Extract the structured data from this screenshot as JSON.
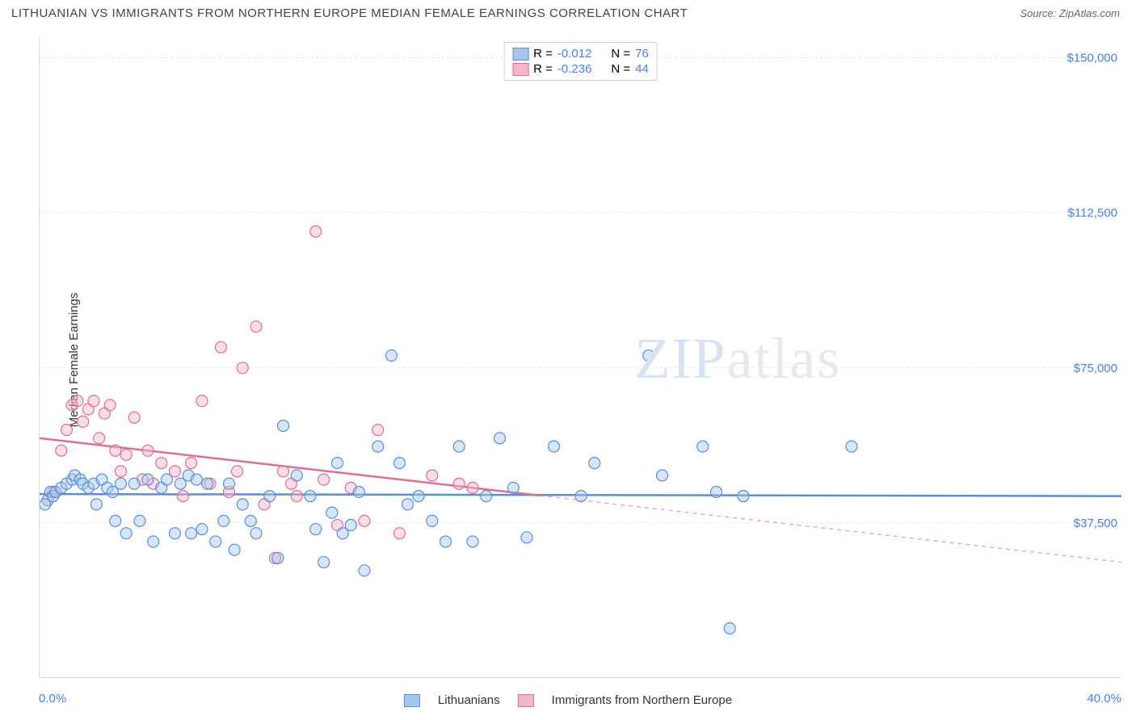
{
  "title": "LITHUANIAN VS IMMIGRANTS FROM NORTHERN EUROPE MEDIAN FEMALE EARNINGS CORRELATION CHART",
  "source": "Source: ZipAtlas.com",
  "ylabel": "Median Female Earnings",
  "watermark_a": "ZIP",
  "watermark_b": "atlas",
  "chart": {
    "type": "scatter-with-regression",
    "background_color": "#ffffff",
    "grid_color": "#e5e5e5",
    "grid_dash": "3,3",
    "axis_color": "#d9d9d9",
    "xlim": [
      0,
      40
    ],
    "ylim": [
      0,
      155000
    ],
    "x_axis": {
      "min_label": "0.0%",
      "max_label": "40.0%",
      "label_color": "#4a7fe0",
      "label_fontsize": 15,
      "tick_positions_pct": [
        0,
        5,
        10,
        15,
        20,
        25,
        30,
        40
      ]
    },
    "y_axis": {
      "ticks": [
        37500,
        75000,
        112500,
        150000
      ],
      "tick_labels": [
        "$37,500",
        "$75,000",
        "$112,500",
        "$150,000"
      ],
      "label_color": "#4a7fe0",
      "label_fontsize": 15
    },
    "marker_radius": 7,
    "marker_stroke_width": 1.2,
    "marker_fill_opacity": 0.45,
    "series": [
      {
        "id": "lithuanians",
        "name": "Lithuanians",
        "color_stroke": "#5a8fd6",
        "color_fill": "#a8c5eb",
        "R": "-0.012",
        "N": "76",
        "regression": {
          "x1": 0,
          "y1": 44500,
          "x2": 40,
          "y2": 44000,
          "solid_until_x": 40
        },
        "points": [
          [
            0.3,
            43000
          ],
          [
            0.4,
            45000
          ],
          [
            0.5,
            44000
          ],
          [
            0.6,
            45000
          ],
          [
            0.8,
            46000
          ],
          [
            1.0,
            47000
          ],
          [
            1.2,
            48000
          ],
          [
            1.3,
            49000
          ],
          [
            1.5,
            48000
          ],
          [
            1.6,
            47000
          ],
          [
            1.8,
            46000
          ],
          [
            2.0,
            47000
          ],
          [
            2.1,
            42000
          ],
          [
            2.3,
            48000
          ],
          [
            2.5,
            46000
          ],
          [
            2.7,
            45000
          ],
          [
            2.8,
            38000
          ],
          [
            3.0,
            47000
          ],
          [
            3.2,
            35000
          ],
          [
            3.5,
            47000
          ],
          [
            3.7,
            38000
          ],
          [
            4.0,
            48000
          ],
          [
            4.2,
            33000
          ],
          [
            4.5,
            46000
          ],
          [
            4.7,
            48000
          ],
          [
            5.0,
            35000
          ],
          [
            5.2,
            47000
          ],
          [
            5.5,
            49000
          ],
          [
            5.6,
            35000
          ],
          [
            5.8,
            48000
          ],
          [
            6.0,
            36000
          ],
          [
            6.2,
            47000
          ],
          [
            6.5,
            33000
          ],
          [
            6.8,
            38000
          ],
          [
            7.0,
            47000
          ],
          [
            7.2,
            31000
          ],
          [
            7.5,
            42000
          ],
          [
            7.8,
            38000
          ],
          [
            8.0,
            35000
          ],
          [
            8.5,
            44000
          ],
          [
            9.0,
            61000
          ],
          [
            9.5,
            49000
          ],
          [
            10.0,
            44000
          ],
          [
            10.2,
            36000
          ],
          [
            10.5,
            28000
          ],
          [
            10.8,
            40000
          ],
          [
            11.0,
            52000
          ],
          [
            11.2,
            35000
          ],
          [
            11.5,
            37000
          ],
          [
            11.8,
            45000
          ],
          [
            12.0,
            26000
          ],
          [
            12.5,
            56000
          ],
          [
            13.0,
            78000
          ],
          [
            13.3,
            52000
          ],
          [
            13.6,
            42000
          ],
          [
            14.0,
            44000
          ],
          [
            14.5,
            38000
          ],
          [
            15.0,
            33000
          ],
          [
            15.5,
            56000
          ],
          [
            16.0,
            33000
          ],
          [
            16.5,
            44000
          ],
          [
            17.0,
            58000
          ],
          [
            17.5,
            46000
          ],
          [
            18.0,
            34000
          ],
          [
            19.0,
            56000
          ],
          [
            20.0,
            44000
          ],
          [
            20.5,
            52000
          ],
          [
            22.5,
            78000
          ],
          [
            23.0,
            49000
          ],
          [
            24.5,
            56000
          ],
          [
            25.0,
            45000
          ],
          [
            26.0,
            44000
          ],
          [
            30.0,
            56000
          ],
          [
            25.5,
            12000
          ],
          [
            8.8,
            29000
          ],
          [
            0.2,
            42000
          ]
        ]
      },
      {
        "id": "immigrants-ne",
        "name": "Immigrants from Northern Europe",
        "color_stroke": "#e06d92",
        "color_fill": "#f5b6c9",
        "R": "-0.236",
        "N": "44",
        "regression": {
          "x1": 0,
          "y1": 58000,
          "x2": 40,
          "y2": 28000,
          "solid_until_x": 18.5
        },
        "points": [
          [
            0.5,
            45000
          ],
          [
            0.8,
            55000
          ],
          [
            1.0,
            60000
          ],
          [
            1.2,
            66000
          ],
          [
            1.4,
            67000
          ],
          [
            1.6,
            62000
          ],
          [
            1.8,
            65000
          ],
          [
            2.0,
            67000
          ],
          [
            2.2,
            58000
          ],
          [
            2.4,
            64000
          ],
          [
            2.6,
            66000
          ],
          [
            2.8,
            55000
          ],
          [
            3.0,
            50000
          ],
          [
            3.2,
            54000
          ],
          [
            3.5,
            63000
          ],
          [
            3.8,
            48000
          ],
          [
            4.0,
            55000
          ],
          [
            4.2,
            47000
          ],
          [
            4.5,
            52000
          ],
          [
            5.0,
            50000
          ],
          [
            5.3,
            44000
          ],
          [
            5.6,
            52000
          ],
          [
            6.0,
            67000
          ],
          [
            6.3,
            47000
          ],
          [
            6.7,
            80000
          ],
          [
            7.0,
            45000
          ],
          [
            7.3,
            50000
          ],
          [
            7.5,
            75000
          ],
          [
            8.0,
            85000
          ],
          [
            8.3,
            42000
          ],
          [
            8.7,
            29000
          ],
          [
            9.0,
            50000
          ],
          [
            9.3,
            47000
          ],
          [
            9.5,
            44000
          ],
          [
            10.2,
            108000
          ],
          [
            10.5,
            48000
          ],
          [
            11.0,
            37000
          ],
          [
            11.5,
            46000
          ],
          [
            12.0,
            38000
          ],
          [
            12.5,
            60000
          ],
          [
            13.3,
            35000
          ],
          [
            14.5,
            49000
          ],
          [
            15.5,
            47000
          ],
          [
            16.0,
            46000
          ]
        ]
      }
    ]
  },
  "legend_top": {
    "R_prefix": "R  =  ",
    "N_prefix": "N  =  "
  }
}
